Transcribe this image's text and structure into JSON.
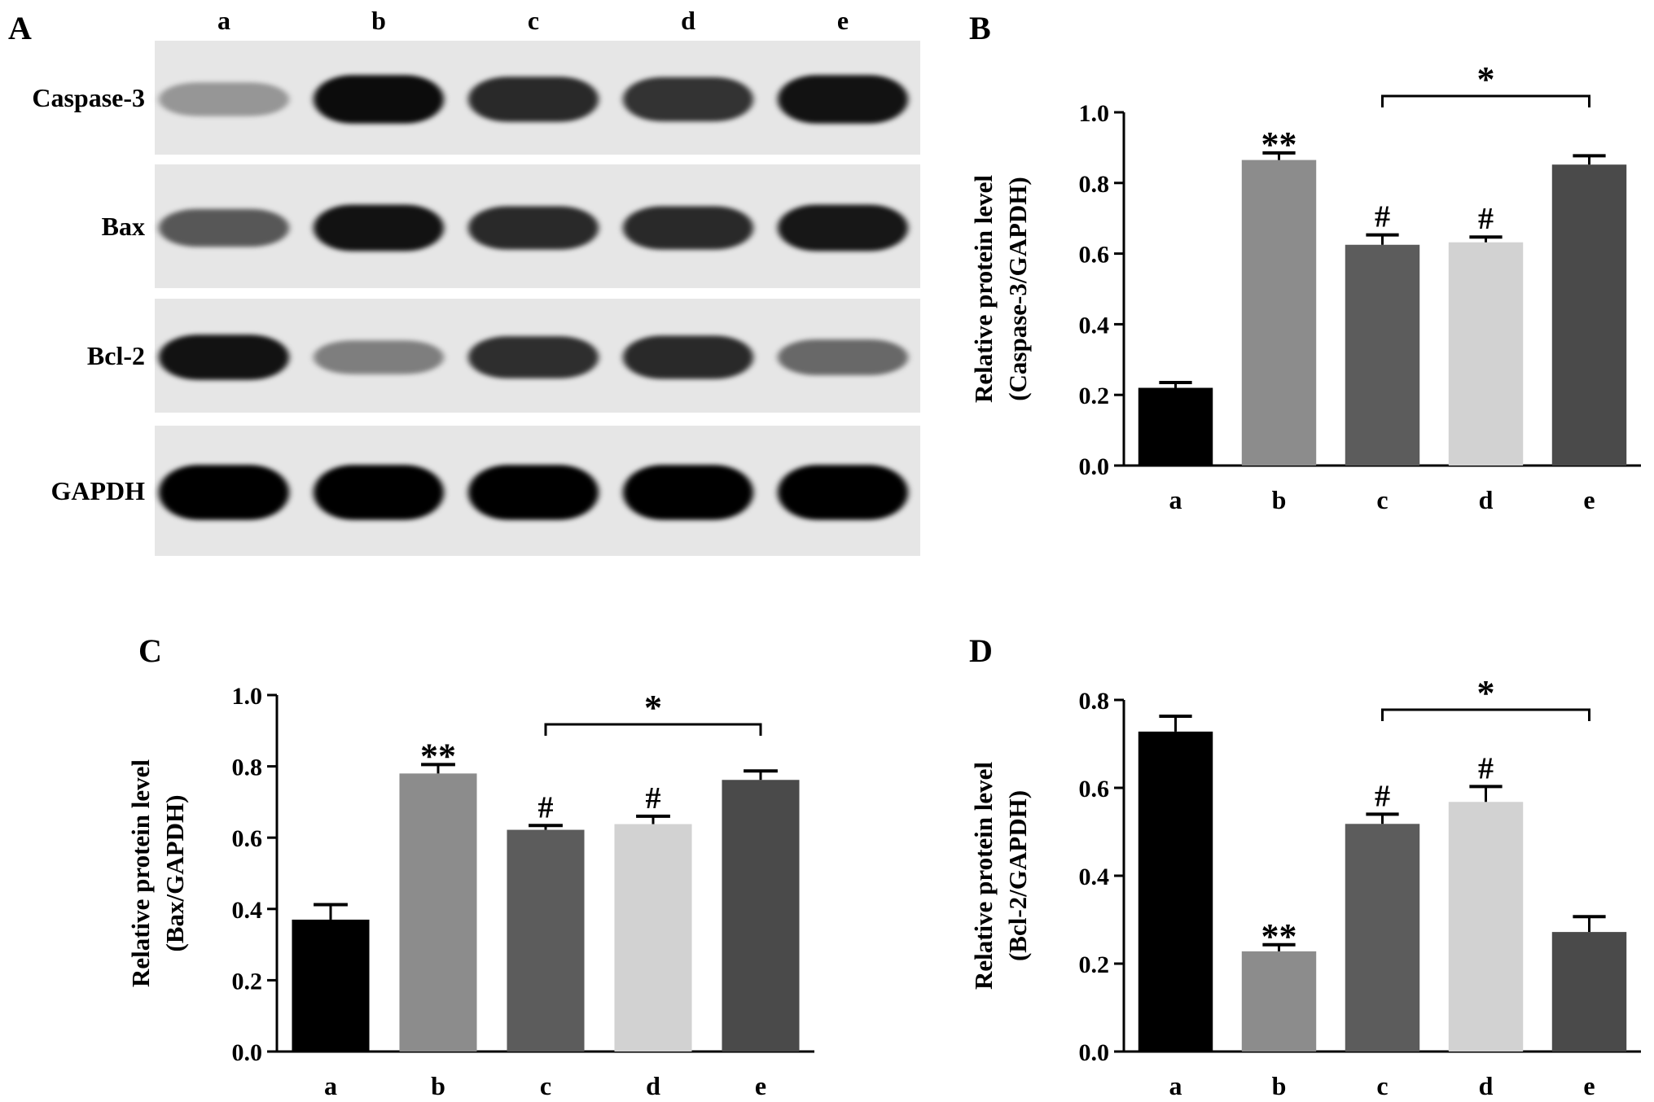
{
  "panel_labels": {
    "A": "A",
    "B": "B",
    "C": "C",
    "D": "D"
  },
  "blot": {
    "lanes": [
      "a",
      "b",
      "c",
      "d",
      "e"
    ],
    "proteins": [
      {
        "label": "Caspase-3",
        "intensity": [
          0.35,
          0.95,
          0.82,
          0.78,
          0.92
        ],
        "thickness": [
          0.45,
          0.8,
          0.72,
          0.7,
          0.8
        ]
      },
      {
        "label": "Bax",
        "intensity": [
          0.62,
          0.92,
          0.82,
          0.82,
          0.9
        ],
        "thickness": [
          0.55,
          0.75,
          0.68,
          0.68,
          0.75
        ]
      },
      {
        "label": "Bcl-2",
        "intensity": [
          0.92,
          0.45,
          0.8,
          0.82,
          0.55
        ],
        "thickness": [
          0.72,
          0.45,
          0.65,
          0.68,
          0.5
        ]
      },
      {
        "label": "GAPDH",
        "intensity": [
          1.0,
          1.0,
          1.0,
          1.0,
          1.0
        ],
        "thickness": [
          0.95,
          0.95,
          0.95,
          0.95,
          0.95
        ]
      }
    ]
  },
  "chart_data": [
    {
      "panel": "B",
      "type": "bar",
      "categories": [
        "a",
        "b",
        "c",
        "d",
        "e"
      ],
      "values": [
        0.22,
        0.865,
        0.625,
        0.632,
        0.852
      ],
      "errors": [
        0.015,
        0.02,
        0.028,
        0.015,
        0.025
      ],
      "annotations": [
        "",
        "**",
        "#",
        "#",
        ""
      ],
      "bracket": {
        "from": "c",
        "to": "e",
        "label": "*"
      },
      "ylabel_line1": "Relative protein level",
      "ylabel_line2": "(Caspase-3/GAPDH)",
      "ylim": [
        0,
        1.0
      ],
      "yticks": [
        "0.0",
        "0.2",
        "0.4",
        "0.6",
        "0.8",
        "1.0"
      ],
      "colors": [
        "#000000",
        "#8c8c8c",
        "#5c5c5c",
        "#d2d2d2",
        "#4a4a4a"
      ]
    },
    {
      "panel": "C",
      "type": "bar",
      "categories": [
        "a",
        "b",
        "c",
        "d",
        "e"
      ],
      "values": [
        0.37,
        0.78,
        0.622,
        0.638,
        0.762
      ],
      "errors": [
        0.042,
        0.025,
        0.012,
        0.022,
        0.025
      ],
      "annotations": [
        "",
        "**",
        "#",
        "#",
        ""
      ],
      "bracket": {
        "from": "c",
        "to": "e",
        "label": "*"
      },
      "ylabel_line1": "Relative protein level",
      "ylabel_line2": "(Bax/GAPDH)",
      "ylim": [
        0,
        1.0
      ],
      "yticks": [
        "0.0",
        "0.2",
        "0.4",
        "0.6",
        "0.8",
        "1.0"
      ],
      "colors": [
        "#000000",
        "#8c8c8c",
        "#5c5c5c",
        "#d2d2d2",
        "#4a4a4a"
      ]
    },
    {
      "panel": "D",
      "type": "bar",
      "categories": [
        "a",
        "b",
        "c",
        "d",
        "e"
      ],
      "values": [
        0.728,
        0.228,
        0.518,
        0.568,
        0.272
      ],
      "errors": [
        0.035,
        0.015,
        0.022,
        0.035,
        0.035
      ],
      "annotations": [
        "",
        "**",
        "#",
        "#",
        ""
      ],
      "bracket": {
        "from": "c",
        "to": "e",
        "label": "*"
      },
      "ylabel_line1": "Relative protein level",
      "ylabel_line2": "(Bcl-2/GAPDH)",
      "ylim": [
        0,
        0.8
      ],
      "yticks": [
        "0.0",
        "0.2",
        "0.4",
        "0.6",
        "0.8"
      ],
      "colors": [
        "#000000",
        "#8c8c8c",
        "#5c5c5c",
        "#d2d2d2",
        "#4a4a4a"
      ]
    }
  ]
}
